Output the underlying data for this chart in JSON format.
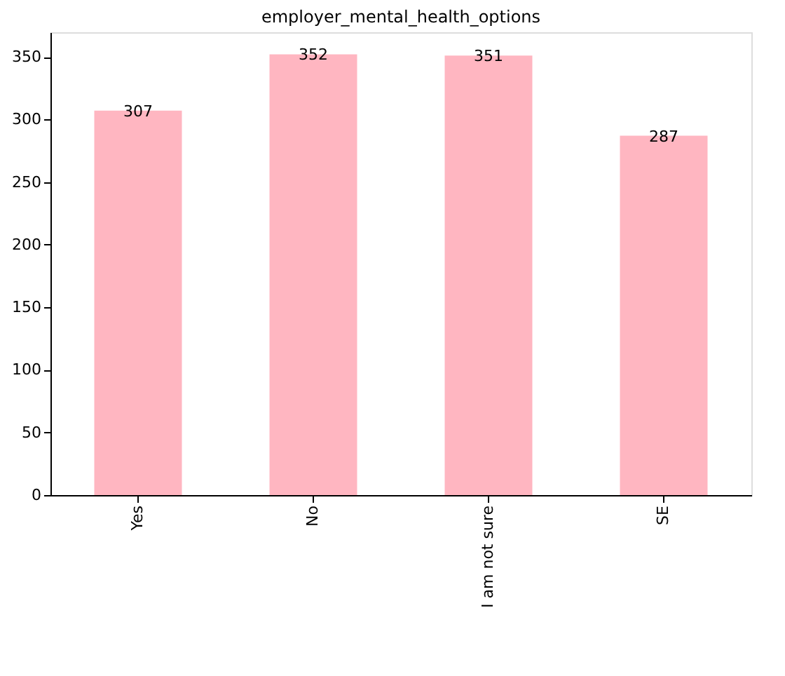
{
  "chart_data": {
    "type": "bar",
    "title": "employer_mental_health_options",
    "categories": [
      "Yes",
      "No",
      "I am not sure",
      "SE"
    ],
    "values": [
      307,
      352,
      351,
      287
    ],
    "color": "#ffb6c1",
    "ylim": [
      0,
      369.6
    ],
    "yticks": [
      0,
      50,
      100,
      150,
      200,
      250,
      300,
      350
    ],
    "data_labels": true,
    "grid": false
  }
}
